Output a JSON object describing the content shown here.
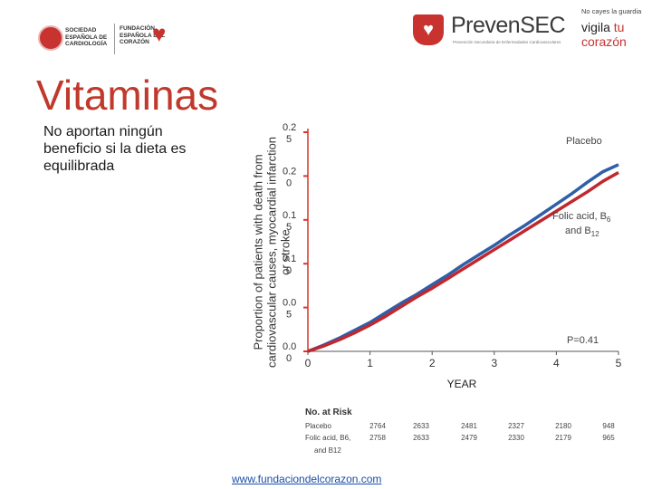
{
  "logos": {
    "sec_text": "SOCIEDAD ESPAÑOLA DE CARDIOLOGÍA",
    "fundacion_text": "FUNDACIÓN ESPAÑOLA DEL CORAZÓN",
    "prevensec_name": "PrevenSEC",
    "prevensec_sub": "Prevención Secundaria de Enfermedades Cardiovasculares",
    "campaign_small": "No cayes la guardia",
    "campaign_line1": "vigila",
    "campaign_line1_red": "tu",
    "campaign_line2_red": "corazón"
  },
  "title": "Vitaminas",
  "subtitle": "No aportan ningún beneficio si la dieta es equilibrada",
  "url": "www.fundaciondelcorazon.com",
  "colors": {
    "title": "#c0392b",
    "placebo": "#2f5fa8",
    "folic": "#c0282e",
    "axis": "#d9342b"
  },
  "chart_data": {
    "type": "line",
    "ylabel": "Proportion of patients with death from cardiovascular causes, myocardial infarction or stroke",
    "xlabel": "YEAR",
    "xlim": [
      0,
      5
    ],
    "ylim": [
      0,
      0.25
    ],
    "x_ticks": [
      "0",
      "1",
      "2",
      "3",
      "4",
      "5"
    ],
    "y_ticks": [
      {
        "value": 0.25,
        "line1": "0.2",
        "line2": "5"
      },
      {
        "value": 0.2,
        "line1": "0.2",
        "line2": "0"
      },
      {
        "value": 0.15,
        "line1": "0.1",
        "line2": "5"
      },
      {
        "value": 0.1,
        "line1": "0.1",
        "line2": "0"
      },
      {
        "value": 0.05,
        "line1": "0.0",
        "line2": "5"
      },
      {
        "value": 0.0,
        "line1": "0.0",
        "line2": "0"
      }
    ],
    "series": [
      {
        "name": "Placebo",
        "x": [
          0,
          0.25,
          0.5,
          0.75,
          1,
          1.25,
          1.5,
          1.75,
          2,
          2.25,
          2.5,
          2.75,
          3,
          3.25,
          3.5,
          3.75,
          4,
          4.25,
          4.5,
          4.75,
          5
        ],
        "y": [
          0,
          0.007,
          0.015,
          0.024,
          0.033,
          0.044,
          0.055,
          0.065,
          0.076,
          0.087,
          0.099,
          0.11,
          0.121,
          0.133,
          0.144,
          0.156,
          0.168,
          0.18,
          0.193,
          0.205,
          0.213
        ]
      },
      {
        "name": "Folic acid, B6, and B12",
        "x": [
          0,
          0.25,
          0.5,
          0.75,
          1,
          1.25,
          1.5,
          1.75,
          2,
          2.25,
          2.5,
          2.75,
          3,
          3.25,
          3.5,
          3.75,
          4,
          4.25,
          4.5,
          4.75,
          5
        ],
        "y": [
          0,
          0.006,
          0.013,
          0.021,
          0.03,
          0.04,
          0.051,
          0.062,
          0.072,
          0.083,
          0.094,
          0.105,
          0.116,
          0.127,
          0.138,
          0.149,
          0.16,
          0.171,
          0.182,
          0.194,
          0.204
        ]
      }
    ],
    "legend": {
      "placebo_label": "Placebo",
      "folic_line1": "Folic acid, B",
      "folic_sub1": "6",
      "folic_line2": "and B",
      "folic_sub2": "12"
    },
    "p_value": "P=0.41",
    "at_risk": {
      "title": "No. at Risk",
      "rows": [
        {
          "label": "Placebo",
          "values": [
            "2764",
            "2633",
            "2481",
            "2327",
            "2180",
            "948"
          ]
        },
        {
          "label": "Folic acid, B6,",
          "label2": "and B12",
          "values": [
            "2758",
            "2633",
            "2479",
            "2330",
            "2179",
            "965"
          ]
        }
      ]
    }
  }
}
